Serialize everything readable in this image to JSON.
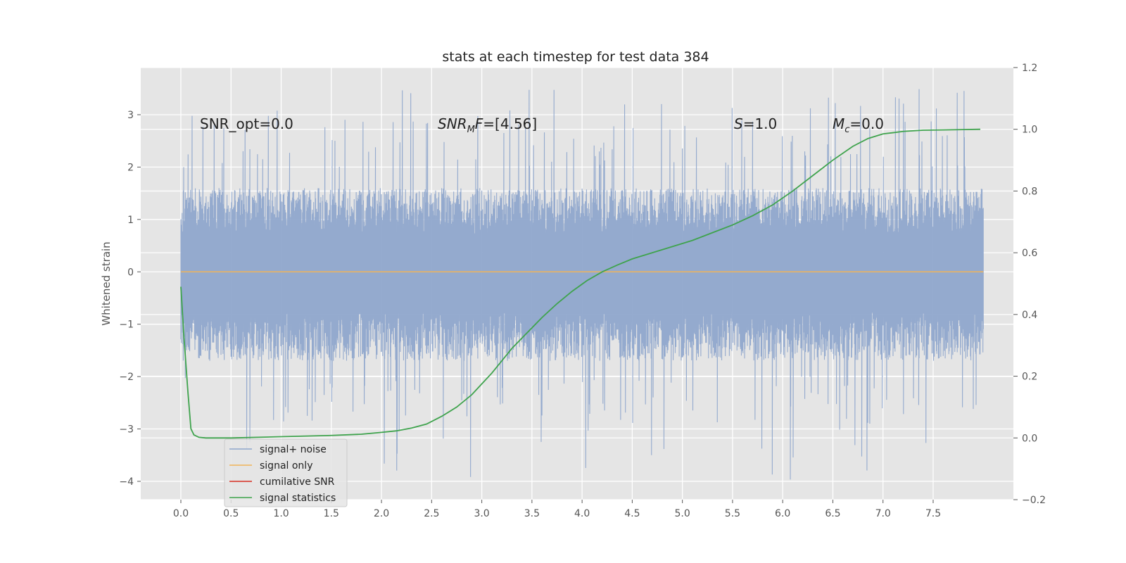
{
  "chart_data": {
    "type": "line",
    "title": "stats at each timestep for test data 384",
    "ylabel": "Whitened strain",
    "x_ticks": [
      "0.0",
      "0.5",
      "1.0",
      "1.5",
      "2.0",
      "2.5",
      "3.0",
      "3.5",
      "4.0",
      "4.5",
      "5.0",
      "5.5",
      "6.0",
      "6.5",
      "7.0",
      "7.5"
    ],
    "x_tick_values": [
      0,
      0.5,
      1,
      1.5,
      2,
      2.5,
      3,
      3.5,
      4,
      4.5,
      5,
      5.5,
      6,
      6.5,
      7,
      7.5
    ],
    "xlim": [
      -0.4,
      8.3
    ],
    "ylim": [
      -4.35,
      3.9
    ],
    "y_ticks": [
      "3",
      "2",
      "1",
      "0",
      "−1",
      "−2",
      "−3",
      "−4"
    ],
    "y_tick_values": [
      3,
      2,
      1,
      0,
      -1,
      -2,
      -3,
      -4
    ],
    "y2lim": [
      -0.2,
      1.2
    ],
    "y2_ticks": [
      "1.2",
      "1.0",
      "0.8",
      "0.6",
      "0.4",
      "0.2",
      "0.0",
      "−0.2"
    ],
    "y2_tick_values": [
      1.2,
      1.0,
      0.8,
      0.6,
      0.4,
      0.2,
      0.0,
      -0.2
    ],
    "grid": true,
    "annotations": {
      "snr_opt": "SNR_opt=0.0",
      "snr_mf_main": "SNR",
      "snr_mf_sub": "M",
      "snr_mf_tail": "F",
      "snr_mf_value": "=[4.56]",
      "s_symbol": "S",
      "s_value": "=1.0",
      "mc_main": "M",
      "mc_sub": "c",
      "mc_value": "=0.0"
    },
    "legend": {
      "placement": "lower-left",
      "entries": [
        {
          "label": "signal+ noise",
          "color": "#8fa6cc"
        },
        {
          "label": "signal only",
          "color": "#f0b458"
        },
        {
          "label": "cumilative SNR",
          "color": "#d62d20"
        },
        {
          "label": "signal statistics",
          "color": "#3fa34d"
        }
      ]
    },
    "series": [
      {
        "name": "signal+ noise",
        "axis": "left",
        "color": "#8fa6cc",
        "x_range": [
          0,
          8.0
        ],
        "noise_envelope": {
          "typical_max": 1.6,
          "typical_min": -1.7,
          "peak_max": 3.58,
          "peak_min": -3.98
        }
      },
      {
        "name": "signal only",
        "axis": "left",
        "color": "#f0b458",
        "x": [
          0,
          8.0
        ],
        "y": [
          0,
          0
        ]
      },
      {
        "name": "signal statistics",
        "axis": "right",
        "color": "#3fa34d",
        "x": [
          0,
          0.03,
          0.07,
          0.1,
          0.13,
          0.18,
          0.25,
          0.5,
          1.0,
          1.5,
          1.8,
          2.0,
          2.15,
          2.3,
          2.45,
          2.6,
          2.75,
          2.9,
          3.0,
          3.1,
          3.2,
          3.3,
          3.45,
          3.6,
          3.75,
          3.9,
          4.05,
          4.2,
          4.35,
          4.5,
          4.7,
          4.9,
          5.1,
          5.3,
          5.5,
          5.7,
          5.9,
          6.1,
          6.3,
          6.5,
          6.7,
          6.85,
          7.0,
          7.2,
          7.4,
          7.6,
          7.8,
          7.97
        ],
        "y": [
          0.49,
          0.33,
          0.15,
          0.03,
          0.01,
          0.002,
          0.0,
          0.0,
          0.004,
          0.008,
          0.012,
          0.018,
          0.023,
          0.032,
          0.045,
          0.07,
          0.1,
          0.14,
          0.175,
          0.21,
          0.25,
          0.29,
          0.34,
          0.39,
          0.435,
          0.475,
          0.51,
          0.538,
          0.56,
          0.58,
          0.6,
          0.62,
          0.64,
          0.665,
          0.69,
          0.72,
          0.755,
          0.8,
          0.85,
          0.9,
          0.945,
          0.97,
          0.985,
          0.993,
          0.997,
          0.998,
          0.999,
          1.0
        ]
      }
    ]
  }
}
